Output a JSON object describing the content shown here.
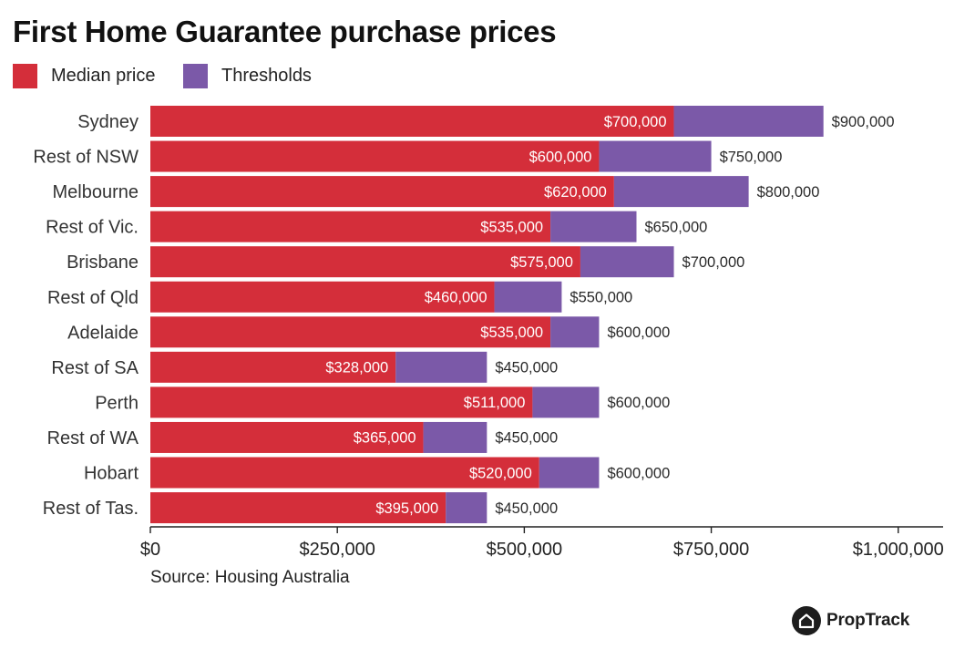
{
  "title": "First Home Guarantee purchase prices",
  "legend": [
    {
      "label": "Median price",
      "color": "#d42e3a"
    },
    {
      "label": "Thresholds",
      "color": "#7b59a8"
    }
  ],
  "source": "Source: Housing Australia",
  "brand": {
    "name": "PropTrack",
    "icon": "house-icon"
  },
  "chart_data": {
    "type": "bar",
    "orientation": "horizontal",
    "stacking": "overlay",
    "title": "First Home Guarantee purchase prices",
    "xlabel": "",
    "ylabel": "",
    "xlim": [
      0,
      1060000
    ],
    "xticks": [
      0,
      250000,
      500000,
      750000,
      1000000
    ],
    "xtick_labels": [
      "$0",
      "$250,000",
      "$500,000",
      "$750,000",
      "$1,000,000"
    ],
    "grid": false,
    "legend_position": "top-left",
    "categories": [
      "Sydney",
      "Rest of NSW",
      "Melbourne",
      "Rest of Vic.",
      "Brisbane",
      "Rest of Qld",
      "Adelaide",
      "Rest of SA",
      "Perth",
      "Rest of WA",
      "Hobart",
      "Rest of Tas."
    ],
    "series": [
      {
        "name": "Median price",
        "color": "#d42e3a",
        "values": [
          700000,
          600000,
          620000,
          535000,
          575000,
          460000,
          535000,
          328000,
          511000,
          365000,
          520000,
          395000
        ],
        "labels": [
          "$700,000",
          "$600,000",
          "$620,000",
          "$535,000",
          "$575,000",
          "$460,000",
          "$535,000",
          "$328,000",
          "$511,000",
          "$365,000",
          "$520,000",
          "$395,000"
        ]
      },
      {
        "name": "Thresholds",
        "color": "#7b59a8",
        "values": [
          900000,
          750000,
          800000,
          650000,
          700000,
          550000,
          600000,
          450000,
          600000,
          450000,
          600000,
          450000
        ],
        "labels": [
          "$900,000",
          "$750,000",
          "$800,000",
          "$650,000",
          "$700,000",
          "$550,000",
          "$600,000",
          "$450,000",
          "$600,000",
          "$450,000",
          "$600,000",
          "$450,000"
        ]
      }
    ]
  }
}
